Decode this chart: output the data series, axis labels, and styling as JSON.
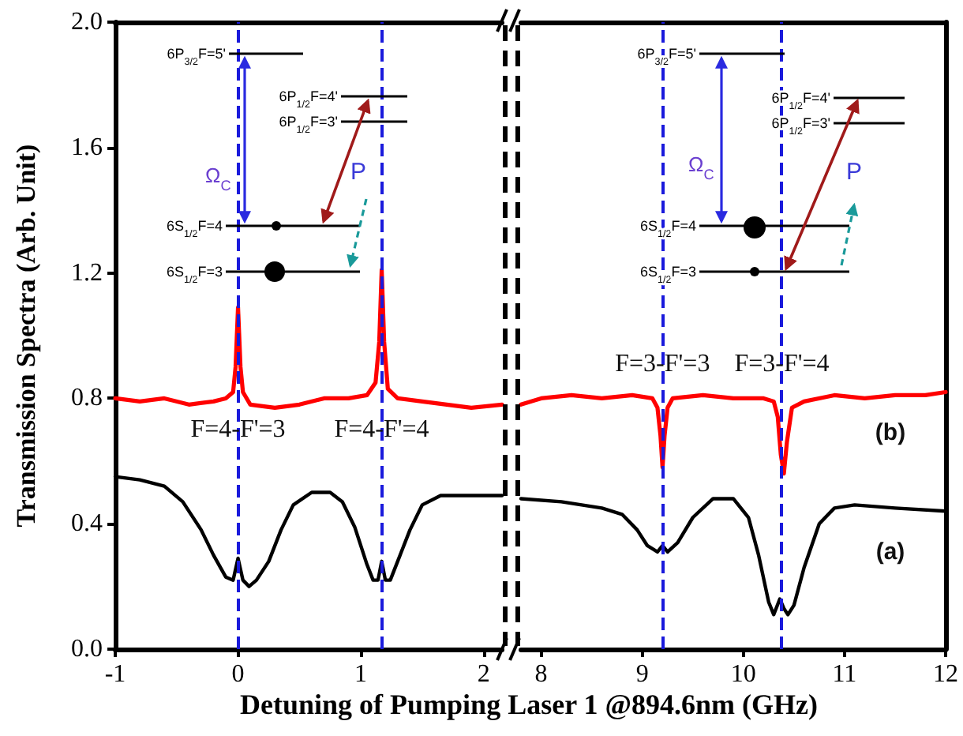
{
  "chart_data": [
    {
      "type": "line",
      "ylabel": "Transmission Spectra (Arb. Unit)",
      "xlabel": "Detuning of Pumping Laser 1 @894.6nm (GHz)",
      "xlim": [
        -1,
        2.15
      ],
      "xticks": [
        -1,
        0,
        1,
        2
      ],
      "ylim": [
        0,
        2
      ],
      "yticks": [
        {
          "value": 0,
          "label": "0.0"
        },
        {
          "value": 0.4,
          "label": "0.4"
        },
        {
          "value": 0.8,
          "label": "0.8"
        },
        {
          "value": 1.2,
          "label": "1.2"
        },
        {
          "value": 1.6,
          "label": "1.6"
        },
        {
          "value": 2,
          "label": "2.0"
        }
      ],
      "marker": "none",
      "series": [
        {
          "color": "#ff0000",
          "x": [
            -1,
            -0.8,
            -0.6,
            -0.4,
            -0.2,
            -0.1,
            -0.04,
            -0.02,
            0,
            0.02,
            0.04,
            0.1,
            0.3,
            0.5,
            0.7,
            0.9,
            1.05,
            1.12,
            1.15,
            1.17,
            1.19,
            1.22,
            1.3,
            1.5,
            1.7,
            1.9,
            2.15
          ],
          "values": [
            0.8,
            0.79,
            0.8,
            0.78,
            0.79,
            0.8,
            0.82,
            0.9,
            1.09,
            0.9,
            0.82,
            0.78,
            0.77,
            0.78,
            0.8,
            0.8,
            0.81,
            0.85,
            0.98,
            1.21,
            0.98,
            0.83,
            0.8,
            0.79,
            0.78,
            0.77,
            0.78
          ]
        },
        {
          "color": "#000000",
          "x": [
            -1,
            -0.8,
            -0.6,
            -0.45,
            -0.3,
            -0.2,
            -0.1,
            -0.04,
            0,
            0.04,
            0.09,
            0.15,
            0.25,
            0.35,
            0.45,
            0.6,
            0.75,
            0.85,
            0.95,
            1.05,
            1.1,
            1.14,
            1.17,
            1.2,
            1.24,
            1.3,
            1.4,
            1.5,
            1.65,
            1.8,
            2.15
          ],
          "values": [
            0.55,
            0.54,
            0.52,
            0.47,
            0.38,
            0.3,
            0.23,
            0.22,
            0.29,
            0.22,
            0.2,
            0.22,
            0.28,
            0.38,
            0.46,
            0.5,
            0.5,
            0.47,
            0.39,
            0.27,
            0.22,
            0.22,
            0.28,
            0.22,
            0.22,
            0.28,
            0.38,
            0.46,
            0.49,
            0.49,
            0.49
          ]
        }
      ],
      "ref_lines": [
        {
          "axis": "x",
          "value": 0,
          "color": "#1a1adc",
          "line_style": "dashed"
        },
        {
          "axis": "x",
          "value": 1.17,
          "color": "#1a1adc",
          "line_style": "dashed"
        }
      ],
      "annotations": [
        {
          "text": "F=4-F'=3",
          "x": 0,
          "y": 0.7
        },
        {
          "text": "F=4-F'=4",
          "x": 1.17,
          "y": 0.7
        },
        "6P$_{3/2}$F=5'",
        "6P$_{1/2}$F=4'",
        "6P$_{1/2}$F=3'",
        "6S$_{1/2}$F=4",
        "6S$_{1/2}$F=3",
        "Ω$_{C}$",
        "P"
      ]
    },
    {
      "type": "line",
      "xlim": [
        7.8,
        12
      ],
      "xticks": [
        8,
        9,
        10,
        11,
        12
      ],
      "ylim": [
        0,
        2
      ],
      "tick_labels": "x",
      "marker": "none",
      "series": [
        {
          "name": "(b)",
          "color": "#ff0000",
          "x": [
            7.8,
            8,
            8.3,
            8.6,
            8.9,
            9.1,
            9.15,
            9.18,
            9.2,
            9.22,
            9.25,
            9.3,
            9.6,
            9.9,
            10.2,
            10.3,
            10.34,
            10.37,
            10.4,
            10.43,
            10.48,
            10.6,
            10.9,
            11.2,
            11.5,
            11.8,
            12
          ],
          "values": [
            0.78,
            0.8,
            0.81,
            0.8,
            0.81,
            0.8,
            0.77,
            0.68,
            0.58,
            0.68,
            0.77,
            0.8,
            0.81,
            0.8,
            0.8,
            0.79,
            0.74,
            0.62,
            0.56,
            0.66,
            0.77,
            0.79,
            0.81,
            0.8,
            0.81,
            0.81,
            0.82
          ]
        },
        {
          "name": "(a)",
          "color": "#000000",
          "x": [
            7.8,
            8.2,
            8.6,
            8.8,
            8.95,
            9.05,
            9.15,
            9.2,
            9.25,
            9.35,
            9.5,
            9.7,
            9.9,
            10.05,
            10.15,
            10.25,
            10.3,
            10.36,
            10.4,
            10.44,
            10.5,
            10.6,
            10.75,
            10.9,
            11.1,
            11.5,
            12
          ],
          "values": [
            0.48,
            0.47,
            0.45,
            0.43,
            0.38,
            0.33,
            0.31,
            0.33,
            0.31,
            0.34,
            0.42,
            0.48,
            0.48,
            0.42,
            0.3,
            0.15,
            0.11,
            0.16,
            0.13,
            0.11,
            0.14,
            0.26,
            0.4,
            0.45,
            0.46,
            0.45,
            0.44
          ]
        }
      ],
      "ref_lines": [
        {
          "axis": "x",
          "value": 9.2,
          "color": "#1a1adc",
          "line_style": "dashed"
        },
        {
          "axis": "x",
          "value": 10.38,
          "color": "#1a1adc",
          "line_style": "dashed"
        }
      ],
      "annotations": [
        {
          "text": "F=3-F'=3",
          "x": 9.2,
          "y": 0.91
        },
        {
          "text": "F=3-F'=4",
          "x": 10.38,
          "y": 0.91
        },
        "6P$_{3/2}$F=5'",
        "6P$_{1/2}$F=4'",
        "6P$_{1/2}$F=3'",
        "6S$_{1/2}$F=4",
        "6S$_{1/2}$F=3",
        "Ω$_{C}$",
        "P"
      ]
    }
  ]
}
